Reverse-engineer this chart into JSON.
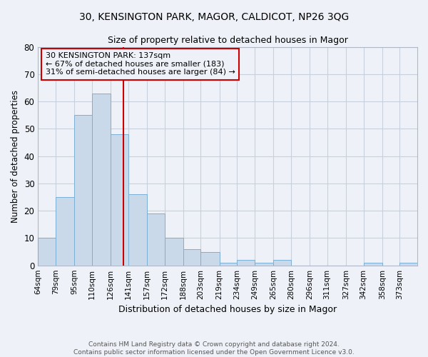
{
  "title": "30, KENSINGTON PARK, MAGOR, CALDICOT, NP26 3QG",
  "subtitle": "Size of property relative to detached houses in Magor",
  "xlabel": "Distribution of detached houses by size in Magor",
  "ylabel": "Number of detached properties",
  "bar_color": "#c9d9ea",
  "bar_edge_color": "#7aafd4",
  "categories": [
    "64sqm",
    "79sqm",
    "95sqm",
    "110sqm",
    "126sqm",
    "141sqm",
    "157sqm",
    "172sqm",
    "188sqm",
    "203sqm",
    "219sqm",
    "234sqm",
    "249sqm",
    "265sqm",
    "280sqm",
    "296sqm",
    "311sqm",
    "327sqm",
    "342sqm",
    "358sqm",
    "373sqm"
  ],
  "values": [
    10,
    25,
    55,
    63,
    48,
    26,
    19,
    10,
    6,
    5,
    1,
    2,
    1,
    2,
    0,
    0,
    0,
    0,
    1,
    0,
    1
  ],
  "bin_edges": [
    64,
    79,
    95,
    110,
    126,
    141,
    157,
    172,
    188,
    203,
    219,
    234,
    249,
    265,
    280,
    296,
    311,
    327,
    342,
    358,
    373,
    388
  ],
  "property_size": 137,
  "annotation_text": "30 KENSINGTON PARK: 137sqm\n← 67% of detached houses are smaller (183)\n31% of semi-detached houses are larger (84) →",
  "red_line_color": "#cc0000",
  "ylim": [
    0,
    80
  ],
  "yticks": [
    0,
    10,
    20,
    30,
    40,
    50,
    60,
    70,
    80
  ],
  "grid_color": "#c8d0dc",
  "background_color": "#eef2f8",
  "footer_line1": "Contains HM Land Registry data © Crown copyright and database right 2024.",
  "footer_line2": "Contains public sector information licensed under the Open Government Licence v3.0."
}
